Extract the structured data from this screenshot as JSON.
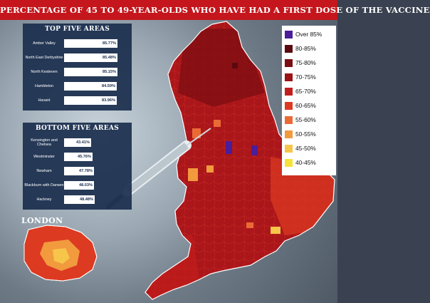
{
  "title": "PERCENTAGE OF 45 TO 49-YEAR-OLDS WHO HAVE HAD A FIRST DOSE OF THE VACCINE",
  "colors": {
    "title_bg": "#c4161c",
    "panel_bg": "#1a2e4d",
    "over_85": "#4b1d99",
    "80_85": "#5a0a0f",
    "75_80": "#7c0d12",
    "70_75": "#9c1216",
    "65_70": "#c21d1d",
    "60_65": "#dd3a22",
    "55_60": "#ea6a35",
    "50_55": "#f29a3e",
    "45_50": "#f6c54a",
    "40_45": "#f7e23a"
  },
  "top_five": {
    "heading": "TOP FIVE AREAS",
    "items": [
      {
        "label": "Amber Valley",
        "value": 85.77,
        "value_label": "85.77%"
      },
      {
        "label": "North East Derbyshire",
        "value": 85.48,
        "value_label": "85.48%"
      },
      {
        "label": "North Kesteven",
        "value": 85.15,
        "value_label": "85.15%"
      },
      {
        "label": "Hambleton",
        "value": 84.59,
        "value_label": "84.59%"
      },
      {
        "label": "Havant",
        "value": 83.96,
        "value_label": "83.96%"
      }
    ]
  },
  "bottom_five": {
    "heading": "BOTTOM FIVE AREAS",
    "items": [
      {
        "label": "Kensington and Chelsea",
        "value": 43.41,
        "value_label": "43.41%"
      },
      {
        "label": "Westminster",
        "value": 45.76,
        "value_label": "45.76%"
      },
      {
        "label": "Newham",
        "value": 47.78,
        "value_label": "47.78%"
      },
      {
        "label": "Blackburn with Darwen",
        "value": 48.03,
        "value_label": "48.03%"
      },
      {
        "label": "Hackney",
        "value": 48.48,
        "value_label": "48.48%"
      }
    ]
  },
  "legend": [
    {
      "label": "Over 85%",
      "color": "#4b1d99"
    },
    {
      "label": "80-85%",
      "color": "#5a0a0f"
    },
    {
      "label": "75-80%",
      "color": "#7c0d12"
    },
    {
      "label": "70-75%",
      "color": "#9c1216"
    },
    {
      "label": "65-70%",
      "color": "#c21d1d"
    },
    {
      "label": "60-65%",
      "color": "#dd3a22"
    },
    {
      "label": "55-60%",
      "color": "#ea6a35"
    },
    {
      "label": "50-55%",
      "color": "#f29a3e"
    },
    {
      "label": "45-50%",
      "color": "#f6c54a"
    },
    {
      "label": "40-45%",
      "color": "#f7e23a"
    }
  ],
  "london_inset": {
    "label": "LONDON"
  },
  "icons": [
    "syringe-icon"
  ]
}
